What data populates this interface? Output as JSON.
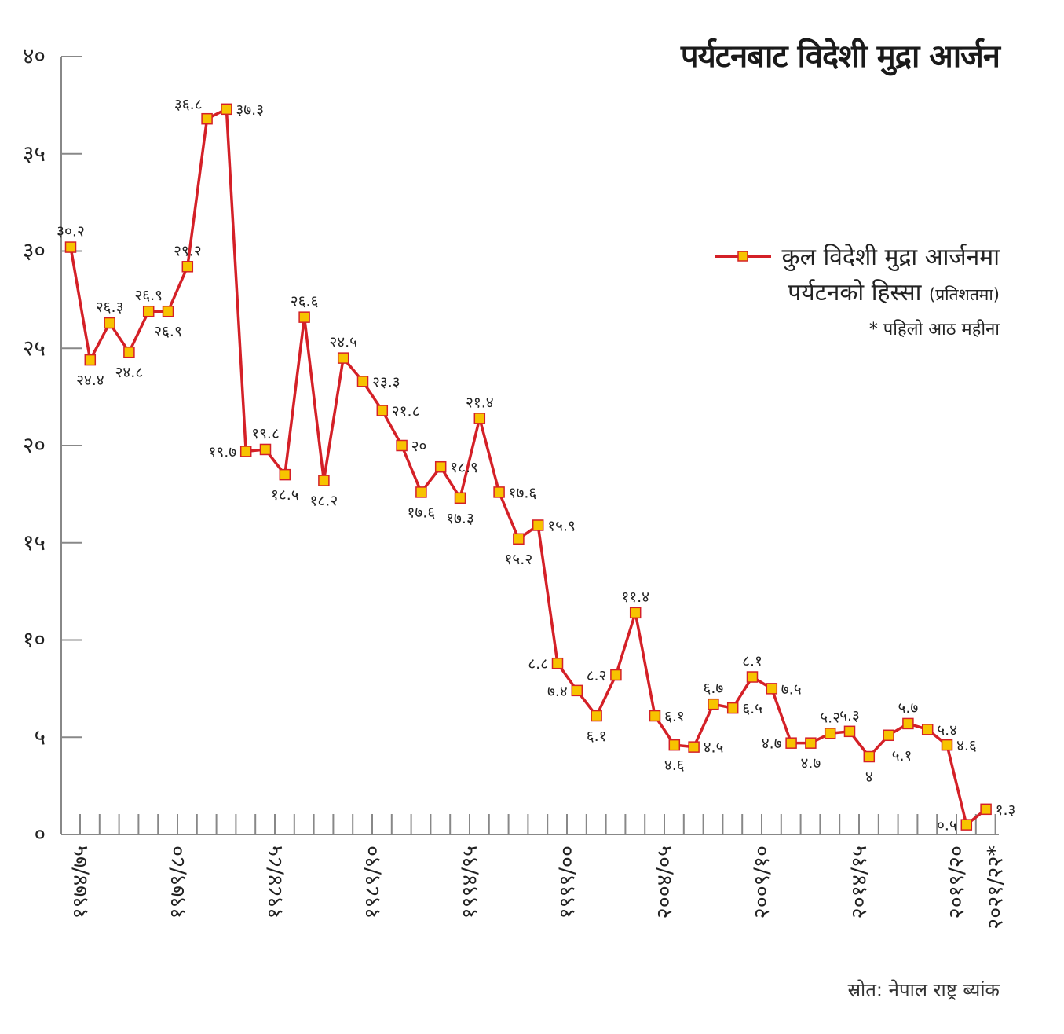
{
  "title": "पर्यटनबाट विदेशी मुद्रा आर्जन",
  "legend": {
    "line1": "कुल विदेशी मुद्रा आर्जनमा",
    "line2": "पर्यटनको हिस्सा",
    "unit": "(प्रतिशतमा)",
    "footnote": "* पहिलो आठ महीना"
  },
  "source": "स्रोत: नेपाल राष्ट्र ब्यांक",
  "colors": {
    "line": "#d42027",
    "marker_fill": "#f7c300",
    "marker_stroke": "#d42027",
    "axis": "#888888"
  },
  "chart_data": {
    "type": "line",
    "y_ticks": [
      {
        "value": 0,
        "label": "०"
      },
      {
        "value": 5,
        "label": "५"
      },
      {
        "value": 10,
        "label": "१०"
      },
      {
        "value": 15,
        "label": "१५"
      },
      {
        "value": 20,
        "label": "२०"
      },
      {
        "value": 25,
        "label": "२५"
      },
      {
        "value": 30,
        "label": "३०"
      },
      {
        "value": 35,
        "label": "३५"
      },
      {
        "value": 40,
        "label": "४०"
      }
    ],
    "ylim": [
      0,
      40
    ],
    "x_count": 48,
    "x_tick_labels": [
      {
        "index": 0,
        "label": "१९७४/७५"
      },
      {
        "index": 5,
        "label": "१९७९/८०"
      },
      {
        "index": 10,
        "label": "१९८४/८५"
      },
      {
        "index": 15,
        "label": "१९८९/९०"
      },
      {
        "index": 20,
        "label": "१९९४/९५"
      },
      {
        "index": 25,
        "label": "१९९९/००"
      },
      {
        "index": 30,
        "label": "२००४/०५"
      },
      {
        "index": 35,
        "label": "२००९/१०"
      },
      {
        "index": 40,
        "label": "२०१४/१५"
      },
      {
        "index": 45,
        "label": "२०१९/२०"
      },
      {
        "index": 47,
        "label": "२०२१/२२*"
      }
    ],
    "series": [
      {
        "values": [
          30.2,
          24.4,
          26.3,
          24.8,
          26.9,
          26.9,
          29.2,
          36.8,
          37.3,
          19.7,
          19.8,
          18.5,
          26.6,
          18.2,
          24.5,
          23.3,
          21.8,
          20,
          17.6,
          18.9,
          17.3,
          21.4,
          17.6,
          15.2,
          15.9,
          8.8,
          7.4,
          6.1,
          8.2,
          11.4,
          6.1,
          4.6,
          4.5,
          6.7,
          6.5,
          8.1,
          7.5,
          4.7,
          4.7,
          5.2,
          5.3,
          4,
          5.1,
          5.7,
          5.4,
          4.6,
          0.5,
          1.3
        ],
        "data_labels": [
          {
            "index": 0,
            "text": "३०.२",
            "pos": "above"
          },
          {
            "index": 1,
            "text": "२४.४",
            "pos": "below"
          },
          {
            "index": 2,
            "text": "२६.३",
            "pos": "above"
          },
          {
            "index": 3,
            "text": "२४.८",
            "pos": "below"
          },
          {
            "index": 4,
            "text": "२६.९",
            "pos": "above"
          },
          {
            "index": 5,
            "text": "२६.९",
            "pos": "below"
          },
          {
            "index": 6,
            "text": "२९.२",
            "pos": "above"
          },
          {
            "index": 7,
            "text": "३६.८",
            "pos": "above-left"
          },
          {
            "index": 8,
            "text": "३७.३",
            "pos": "right"
          },
          {
            "index": 9,
            "text": "१९.७",
            "pos": "left"
          },
          {
            "index": 10,
            "text": "१९.८",
            "pos": "above"
          },
          {
            "index": 11,
            "text": "१८.५",
            "pos": "below"
          },
          {
            "index": 12,
            "text": "२६.६",
            "pos": "above"
          },
          {
            "index": 13,
            "text": "१८.२",
            "pos": "below"
          },
          {
            "index": 14,
            "text": "२४.५",
            "pos": "above"
          },
          {
            "index": 15,
            "text": "२३.३",
            "pos": "right"
          },
          {
            "index": 16,
            "text": "२१.८",
            "pos": "right"
          },
          {
            "index": 17,
            "text": "२०",
            "pos": "right"
          },
          {
            "index": 18,
            "text": "१७.६",
            "pos": "below"
          },
          {
            "index": 19,
            "text": "१८.९",
            "pos": "right"
          },
          {
            "index": 20,
            "text": "१७.३",
            "pos": "below"
          },
          {
            "index": 21,
            "text": "२१.४",
            "pos": "above"
          },
          {
            "index": 22,
            "text": "१७.६",
            "pos": "right"
          },
          {
            "index": 23,
            "text": "१५.२",
            "pos": "below"
          },
          {
            "index": 24,
            "text": "१५.९",
            "pos": "right"
          },
          {
            "index": 25,
            "text": "८.८",
            "pos": "left"
          },
          {
            "index": 26,
            "text": "७.४",
            "pos": "left"
          },
          {
            "index": 27,
            "text": "६.१",
            "pos": "below"
          },
          {
            "index": 28,
            "text": "८.२",
            "pos": "left"
          },
          {
            "index": 29,
            "text": "११.४",
            "pos": "above"
          },
          {
            "index": 30,
            "text": "६.१",
            "pos": "right"
          },
          {
            "index": 31,
            "text": "४.६",
            "pos": "below"
          },
          {
            "index": 32,
            "text": "४.५",
            "pos": "right"
          },
          {
            "index": 33,
            "text": "६.७",
            "pos": "above"
          },
          {
            "index": 34,
            "text": "६.५",
            "pos": "right"
          },
          {
            "index": 35,
            "text": "८.१",
            "pos": "above"
          },
          {
            "index": 36,
            "text": "७.५",
            "pos": "right"
          },
          {
            "index": 37,
            "text": "४.७",
            "pos": "left"
          },
          {
            "index": 38,
            "text": "४.७",
            "pos": "below"
          },
          {
            "index": 39,
            "text": "५.२",
            "pos": "above"
          },
          {
            "index": 40,
            "text": "५.३",
            "pos": "above"
          },
          {
            "index": 41,
            "text": "४",
            "pos": "below"
          },
          {
            "index": 42,
            "text": "५.१",
            "pos": "below-right"
          },
          {
            "index": 43,
            "text": "५.७",
            "pos": "above"
          },
          {
            "index": 44,
            "text": "५.४",
            "pos": "right"
          },
          {
            "index": 45,
            "text": "४.६",
            "pos": "right"
          },
          {
            "index": 46,
            "text": "०.५",
            "pos": "left"
          },
          {
            "index": 47,
            "text": "१.३",
            "pos": "right"
          }
        ]
      }
    ],
    "grid": false
  }
}
